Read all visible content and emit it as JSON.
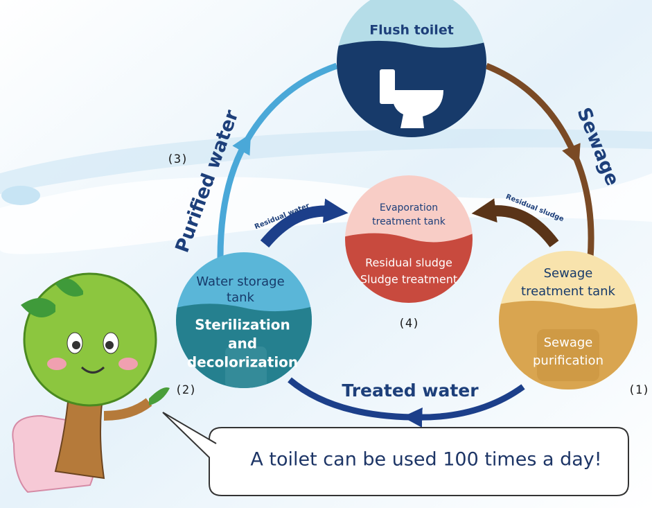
{
  "nodes": [
    {
      "label_lines": [
        "Flush toilet"
      ]
    },
    {
      "label_lines": [
        "Sewage",
        "treatment tank"
      ],
      "detail_lines": [
        "Sewage",
        "purification"
      ],
      "number": "(1)"
    },
    {
      "label_lines": [
        "Water storage",
        "tank"
      ],
      "detail_lines": [
        "Sterilization",
        "and",
        "decolorization"
      ],
      "number": "(2)"
    },
    {
      "label_lines": [
        "Evaporation",
        "treatment tank"
      ],
      "detail_lines": [
        "Residual sludge",
        "Sludge treatment"
      ],
      "number": "(4)"
    }
  ],
  "arrows": [
    {
      "label": "Sewage"
    },
    {
      "label": "Treated water"
    },
    {
      "label": "Purified water",
      "number": "(3)"
    },
    {
      "label": "Residual water"
    },
    {
      "label": "Residual sludge"
    }
  ],
  "callout": "A toilet can be used 100 times a day!"
}
